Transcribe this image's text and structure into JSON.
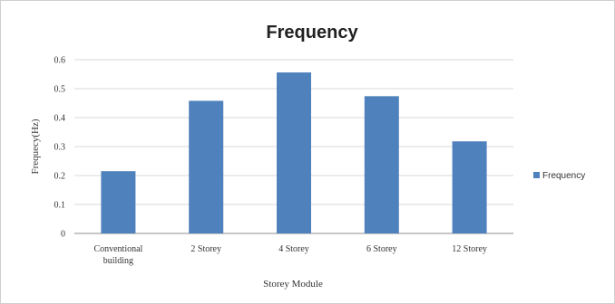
{
  "chart_data": {
    "type": "bar",
    "title": "Frequency",
    "xlabel": "Storey Module",
    "ylabel": "Frequecy(Hz)",
    "categories": [
      [
        "Conventional",
        "building"
      ],
      [
        "2 Storey"
      ],
      [
        "4 Storey"
      ],
      [
        "6 Storey"
      ],
      [
        "12 Storey"
      ]
    ],
    "series": [
      {
        "name": "Frequency",
        "values": [
          0.215,
          0.458,
          0.556,
          0.474,
          0.318
        ],
        "color": "#4f81bd"
      }
    ],
    "ylim": [
      0,
      0.6
    ],
    "yticks": [
      "0",
      "0.1",
      "0.2",
      "0.3",
      "0.4",
      "0.5",
      "0.6"
    ],
    "grid": true,
    "legend": "right"
  }
}
